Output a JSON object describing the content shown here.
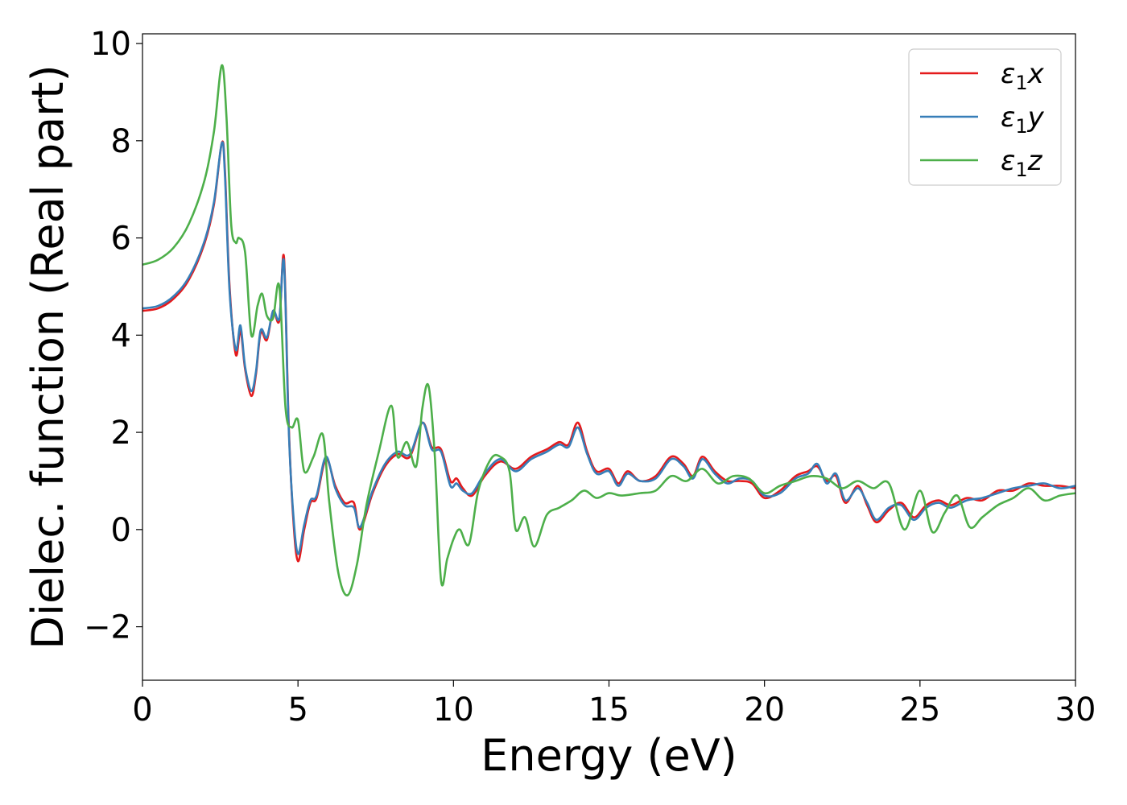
{
  "chart_data": {
    "type": "line",
    "xlabel": "Energy (eV)",
    "ylabel": "Dielec. function (Real part)",
    "xlim": [
      0,
      30
    ],
    "ylim": [
      -3.1,
      10.2
    ],
    "xticks": [
      0,
      5,
      10,
      15,
      20,
      25,
      30
    ],
    "xtick_labels": [
      "0",
      "5",
      "10",
      "15",
      "20",
      "25",
      "30"
    ],
    "yticks": [
      -2,
      0,
      2,
      4,
      6,
      8,
      10
    ],
    "ytick_labels": [
      "−2",
      "0",
      "2",
      "4",
      "6",
      "8",
      "10"
    ],
    "grid": false,
    "legend_position": "top-right",
    "series": [
      {
        "name": "ε₁x",
        "legend_main": "ε",
        "legend_sub": "1",
        "legend_axis": "x",
        "color": "#e41a1c",
        "x": [
          0,
          0.5,
          1.0,
          1.5,
          2.0,
          2.3,
          2.55,
          2.65,
          2.8,
          3.0,
          3.15,
          3.3,
          3.5,
          3.65,
          3.8,
          4.0,
          4.2,
          4.4,
          4.55,
          4.7,
          4.85,
          5.0,
          5.2,
          5.4,
          5.6,
          5.9,
          6.2,
          6.5,
          6.8,
          7.0,
          7.4,
          7.8,
          8.2,
          8.6,
          9.0,
          9.3,
          9.6,
          9.9,
          10.1,
          10.3,
          10.6,
          11.0,
          11.5,
          12.0,
          12.5,
          13.0,
          13.4,
          13.7,
          14.0,
          14.3,
          14.6,
          15.0,
          15.3,
          15.6,
          16.0,
          16.5,
          17.0,
          17.4,
          17.7,
          18.0,
          18.4,
          18.8,
          19.2,
          19.6,
          20.0,
          20.5,
          21.0,
          21.4,
          21.7,
          22.0,
          22.3,
          22.6,
          23.0,
          23.3,
          23.6,
          24.0,
          24.4,
          24.8,
          25.2,
          25.6,
          26.0,
          26.5,
          27.0,
          27.5,
          28.0,
          28.5,
          29.0,
          29.5,
          30.0
        ],
        "values": [
          4.5,
          4.55,
          4.75,
          5.15,
          5.9,
          6.7,
          7.95,
          7.4,
          5.0,
          3.6,
          4.1,
          3.3,
          2.75,
          3.2,
          4.05,
          3.9,
          4.5,
          4.3,
          5.6,
          2.2,
          0.2,
          -0.65,
          0.0,
          0.55,
          0.65,
          1.45,
          0.9,
          0.55,
          0.55,
          0.0,
          0.75,
          1.3,
          1.55,
          1.5,
          2.2,
          1.7,
          1.65,
          1.0,
          1.05,
          0.85,
          0.7,
          1.1,
          1.4,
          1.25,
          1.5,
          1.65,
          1.8,
          1.75,
          2.2,
          1.6,
          1.2,
          1.25,
          0.95,
          1.2,
          1.0,
          1.1,
          1.5,
          1.35,
          1.1,
          1.5,
          1.2,
          1.0,
          1.0,
          0.95,
          0.65,
          0.8,
          1.1,
          1.2,
          1.3,
          1.0,
          1.1,
          0.55,
          0.9,
          0.5,
          0.15,
          0.4,
          0.55,
          0.25,
          0.5,
          0.6,
          0.5,
          0.65,
          0.6,
          0.8,
          0.8,
          0.95,
          0.9,
          0.9,
          0.85
        ]
      },
      {
        "name": "ε₁y",
        "legend_main": "ε",
        "legend_sub": "1",
        "legend_axis": "y",
        "color": "#377eb8",
        "x": [
          0,
          0.5,
          1.0,
          1.5,
          2.0,
          2.3,
          2.55,
          2.65,
          2.8,
          3.0,
          3.15,
          3.3,
          3.5,
          3.65,
          3.8,
          4.0,
          4.2,
          4.4,
          4.55,
          4.7,
          4.85,
          5.0,
          5.2,
          5.4,
          5.6,
          5.9,
          6.2,
          6.5,
          6.8,
          7.0,
          7.4,
          7.8,
          8.2,
          8.6,
          9.0,
          9.3,
          9.6,
          9.9,
          10.1,
          10.3,
          10.6,
          11.0,
          11.5,
          12.0,
          12.5,
          13.0,
          13.4,
          13.7,
          14.0,
          14.3,
          14.6,
          15.0,
          15.3,
          15.6,
          16.0,
          16.5,
          17.0,
          17.4,
          17.7,
          18.0,
          18.4,
          18.8,
          19.2,
          19.6,
          20.0,
          20.5,
          21.0,
          21.4,
          21.7,
          22.0,
          22.3,
          22.6,
          23.0,
          23.3,
          23.6,
          24.0,
          24.4,
          24.8,
          25.2,
          25.6,
          26.0,
          26.5,
          27.0,
          27.5,
          28.0,
          28.5,
          29.0,
          29.5,
          30.0
        ],
        "values": [
          4.55,
          4.6,
          4.8,
          5.2,
          5.95,
          6.75,
          7.95,
          7.3,
          4.9,
          3.7,
          4.2,
          3.35,
          2.85,
          3.25,
          4.1,
          3.95,
          4.5,
          4.35,
          5.5,
          2.1,
          0.3,
          -0.5,
          0.1,
          0.6,
          0.7,
          1.5,
          0.85,
          0.5,
          0.45,
          0.05,
          0.8,
          1.35,
          1.6,
          1.55,
          2.2,
          1.65,
          1.6,
          0.9,
          0.95,
          0.8,
          0.75,
          1.15,
          1.45,
          1.2,
          1.45,
          1.6,
          1.75,
          1.7,
          2.1,
          1.55,
          1.15,
          1.2,
          0.9,
          1.15,
          1.0,
          1.05,
          1.45,
          1.3,
          1.05,
          1.45,
          1.15,
          0.95,
          1.05,
          1.0,
          0.7,
          0.75,
          1.05,
          1.15,
          1.35,
          0.95,
          1.15,
          0.6,
          0.85,
          0.55,
          0.2,
          0.45,
          0.5,
          0.2,
          0.45,
          0.55,
          0.45,
          0.6,
          0.65,
          0.75,
          0.85,
          0.9,
          0.95,
          0.85,
          0.9
        ]
      },
      {
        "name": "ε₁z",
        "legend_main": "ε",
        "legend_sub": "1",
        "legend_axis": "z",
        "color": "#4daf4a",
        "x": [
          0,
          0.5,
          1.0,
          1.5,
          2.0,
          2.3,
          2.55,
          2.7,
          2.85,
          3.0,
          3.1,
          3.3,
          3.5,
          3.7,
          3.85,
          4.0,
          4.2,
          4.4,
          4.6,
          4.8,
          5.0,
          5.2,
          5.5,
          5.8,
          6.0,
          6.3,
          6.6,
          6.9,
          7.2,
          7.6,
          8.0,
          8.2,
          8.5,
          8.8,
          9.0,
          9.2,
          9.4,
          9.6,
          9.8,
          10.0,
          10.2,
          10.5,
          10.8,
          11.2,
          11.5,
          11.8,
          12.0,
          12.3,
          12.6,
          13.0,
          13.4,
          13.8,
          14.2,
          14.6,
          15.0,
          15.4,
          16.0,
          16.5,
          17.0,
          17.5,
          18.0,
          18.5,
          19.0,
          19.5,
          20.0,
          20.5,
          21.0,
          21.5,
          22.0,
          22.5,
          23.0,
          23.5,
          24.0,
          24.5,
          25.0,
          25.4,
          25.8,
          26.2,
          26.6,
          27.0,
          27.5,
          28.0,
          28.5,
          29.0,
          29.5,
          30.0
        ],
        "values": [
          5.45,
          5.55,
          5.8,
          6.3,
          7.2,
          8.2,
          9.55,
          8.5,
          6.3,
          5.9,
          6.0,
          5.7,
          4.0,
          4.6,
          4.85,
          4.4,
          4.35,
          5.0,
          2.5,
          2.1,
          2.25,
          1.2,
          1.5,
          1.95,
          0.6,
          -0.9,
          -1.35,
          -0.7,
          0.5,
          1.6,
          2.55,
          1.5,
          1.8,
          1.3,
          2.5,
          2.95,
          1.5,
          -1.05,
          -0.6,
          -0.2,
          0.0,
          -0.3,
          0.8,
          1.45,
          1.5,
          1.2,
          0.0,
          0.25,
          -0.35,
          0.3,
          0.45,
          0.6,
          0.8,
          0.65,
          0.75,
          0.7,
          0.75,
          0.8,
          1.1,
          1.0,
          1.25,
          0.95,
          1.1,
          1.05,
          0.75,
          0.9,
          1.0,
          1.1,
          1.05,
          0.85,
          1.0,
          0.85,
          0.95,
          0.0,
          0.8,
          -0.05,
          0.35,
          0.7,
          0.05,
          0.25,
          0.5,
          0.65,
          0.85,
          0.6,
          0.7,
          0.75
        ]
      }
    ]
  }
}
